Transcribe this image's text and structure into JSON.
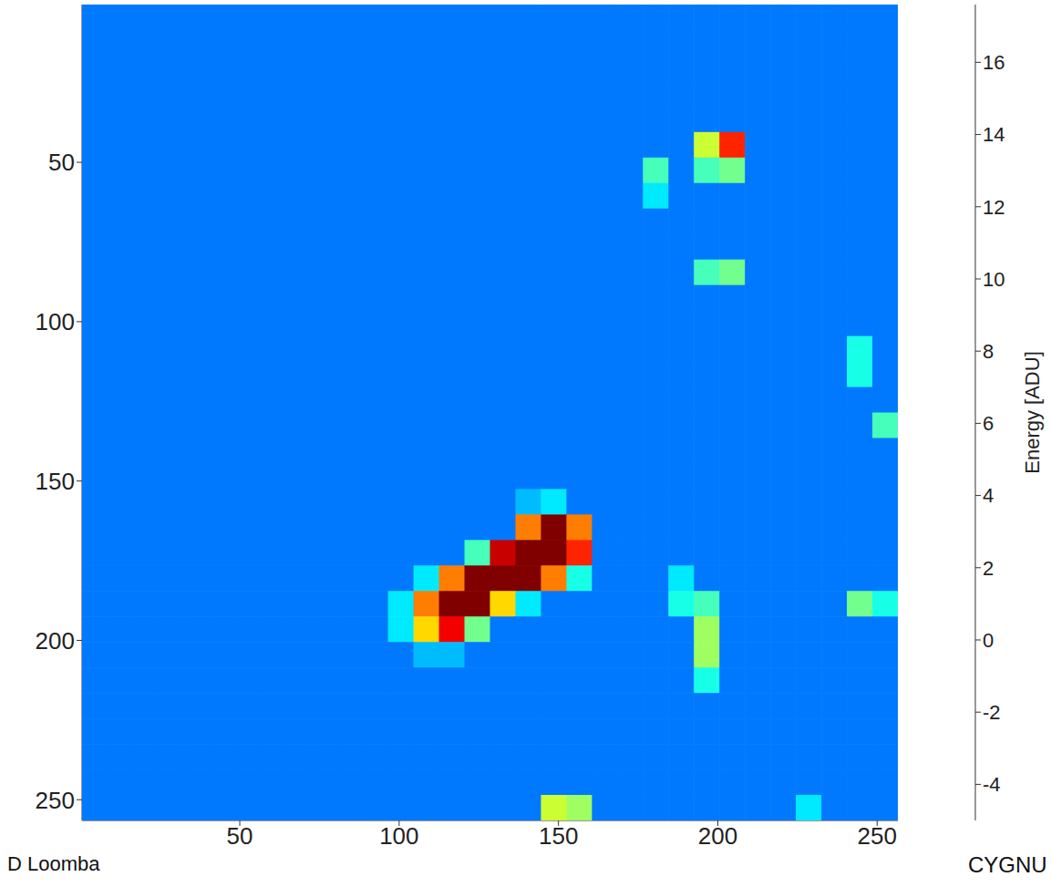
{
  "chart_data": {
    "type": "heatmap",
    "xlim": [
      0.5,
      256.5
    ],
    "ylim": [
      0.5,
      256.5
    ],
    "xticks": [
      50,
      100,
      150,
      200,
      250
    ],
    "yticks": [
      50,
      100,
      150,
      200,
      250
    ],
    "cells": [
      [
        0.5,
        0.5,
        0.5,
        0.5,
        0.5,
        0.5,
        0.5,
        0.5,
        0.5,
        0.5,
        0.5,
        0.5,
        0.5,
        0.5,
        0.5,
        0.5,
        0.5,
        0.5,
        0.5,
        0.5,
        0.5,
        0.5,
        0.5,
        0.5,
        0.5,
        0.5,
        0.5,
        0.5,
        0.5,
        0.5,
        0.5,
        0.5
      ],
      [
        0.5,
        0.5,
        0.5,
        0.5,
        0.5,
        0.5,
        0.5,
        0.5,
        0.5,
        0.5,
        0.5,
        0.5,
        0.5,
        0.5,
        0.5,
        0.5,
        0.5,
        0.5,
        0.5,
        0.5,
        0.5,
        0.5,
        0.5,
        0.5,
        0.5,
        0.5,
        0.5,
        0.5,
        0.5,
        0.5,
        0.5,
        0.5
      ],
      [
        0.5,
        0.5,
        0.5,
        0.5,
        0.5,
        0.5,
        0.5,
        0.5,
        0.5,
        0.5,
        0.5,
        0.5,
        0.5,
        0.5,
        0.5,
        0.5,
        0.5,
        0.5,
        0.5,
        0.5,
        0.5,
        0.5,
        0.5,
        0.5,
        0.5,
        0.5,
        0.5,
        0.5,
        0.5,
        0.5,
        0.5,
        0.5
      ],
      [
        0.5,
        0.5,
        0.5,
        0.5,
        0.5,
        0.5,
        0.5,
        0.5,
        0.5,
        0.5,
        0.5,
        0.5,
        0.5,
        0.5,
        0.5,
        0.5,
        0.5,
        0.5,
        0.5,
        0.5,
        0.5,
        0.5,
        0.5,
        0.5,
        0.5,
        0.5,
        0.5,
        0.5,
        0.5,
        0.5,
        0.5,
        0.5
      ],
      [
        0.5,
        0.5,
        0.5,
        0.5,
        0.5,
        0.5,
        0.5,
        0.5,
        0.5,
        0.5,
        0.5,
        0.5,
        0.5,
        0.5,
        0.5,
        0.5,
        0.5,
        0.5,
        0.5,
        0.5,
        0.5,
        0.5,
        0.5,
        0.5,
        0.5,
        0.5,
        0.5,
        0.5,
        0.5,
        0.5,
        0.5,
        0.5
      ],
      [
        0.5,
        0.5,
        0.5,
        0.5,
        0.5,
        0.5,
        0.5,
        0.5,
        0.5,
        0.5,
        0.5,
        0.5,
        0.5,
        0.5,
        0.5,
        0.5,
        0.5,
        0.5,
        0.5,
        0.5,
        0.5,
        0.5,
        0.5,
        0.5,
        8,
        14,
        0.5,
        0.5,
        0.5,
        0.5,
        0.5,
        0.5
      ],
      [
        0.5,
        0.5,
        0.5,
        0.5,
        0.5,
        0.5,
        0.5,
        0.5,
        0.5,
        0.5,
        0.5,
        0.5,
        0.5,
        0.5,
        0.5,
        0.5,
        0.5,
        0.5,
        0.5,
        0.5,
        0.5,
        0.5,
        5,
        0.5,
        5,
        6,
        0.5,
        0.5,
        0.5,
        0.5,
        0.5,
        0.5
      ],
      [
        0.5,
        0.5,
        0.5,
        0.5,
        0.5,
        0.5,
        0.5,
        0.5,
        0.5,
        0.5,
        0.5,
        0.5,
        0.5,
        0.5,
        0.5,
        0.5,
        0.5,
        0.5,
        0.5,
        0.5,
        0.5,
        0.5,
        3,
        0.5,
        0.5,
        0.5,
        0.5,
        0.5,
        0.5,
        0.5,
        0.5,
        0.5
      ],
      [
        0.5,
        0.5,
        0.5,
        0.5,
        0.5,
        0.5,
        0.5,
        0.5,
        0.5,
        0.5,
        0.5,
        0.5,
        0.5,
        0.5,
        0.5,
        0.5,
        0.5,
        0.5,
        0.5,
        0.5,
        0.5,
        0.5,
        0.5,
        0.5,
        0.5,
        0.5,
        0.5,
        0.5,
        0.5,
        0.5,
        0.5,
        0.5
      ],
      [
        0.5,
        0.5,
        0.5,
        0.5,
        0.5,
        0.5,
        0.5,
        0.5,
        0.5,
        0.5,
        0.5,
        0.5,
        0.5,
        0.5,
        0.5,
        0.5,
        0.5,
        0.5,
        0.5,
        0.5,
        0.5,
        0.5,
        0.5,
        0.5,
        0.5,
        0.5,
        0.5,
        0.5,
        0.5,
        0.5,
        0.5,
        0.5
      ],
      [
        0.5,
        0.5,
        0.5,
        0.5,
        0.5,
        0.5,
        0.5,
        0.5,
        0.5,
        0.5,
        0.5,
        0.5,
        0.5,
        0.5,
        0.5,
        0.5,
        0.5,
        0.5,
        0.5,
        0.5,
        0.5,
        0.5,
        0.5,
        0.5,
        5,
        6,
        0.5,
        0.5,
        0.5,
        0.5,
        0.5,
        0.5
      ],
      [
        0.5,
        0.5,
        0.5,
        0.5,
        0.5,
        0.5,
        0.5,
        0.5,
        0.5,
        0.5,
        0.5,
        0.5,
        0.5,
        0.5,
        0.5,
        0.5,
        0.5,
        0.5,
        0.5,
        0.5,
        0.5,
        0.5,
        0.5,
        0.5,
        0.5,
        0.5,
        0.5,
        0.5,
        0.5,
        0.5,
        0.5,
        0.5
      ],
      [
        0.5,
        0.5,
        0.5,
        0.5,
        0.5,
        0.5,
        0.5,
        0.5,
        0.5,
        0.5,
        0.5,
        0.5,
        0.5,
        0.5,
        0.5,
        0.5,
        0.5,
        0.5,
        0.5,
        0.5,
        0.5,
        0.5,
        0.5,
        0.5,
        0.5,
        0.5,
        0.5,
        0.5,
        0.5,
        0.5,
        0.5,
        0.5
      ],
      [
        0.5,
        0.5,
        0.5,
        0.5,
        0.5,
        0.5,
        0.5,
        0.5,
        0.5,
        0.5,
        0.5,
        0.5,
        0.5,
        0.5,
        0.5,
        0.5,
        0.5,
        0.5,
        0.5,
        0.5,
        0.5,
        0.5,
        0.5,
        0.5,
        0.5,
        0.5,
        0.5,
        0.5,
        0.5,
        0.5,
        4,
        0.5
      ],
      [
        0.5,
        0.5,
        0.5,
        0.5,
        0.5,
        0.5,
        0.5,
        0.5,
        0.5,
        0.5,
        0.5,
        0.5,
        0.5,
        0.5,
        0.5,
        0.5,
        0.5,
        0.5,
        0.5,
        0.5,
        0.5,
        0.5,
        0.5,
        0.5,
        0.5,
        0.5,
        0.5,
        0.5,
        0.5,
        0.5,
        4,
        0.5
      ],
      [
        0.5,
        0.5,
        0.5,
        0.5,
        0.5,
        0.5,
        0.5,
        0.5,
        0.5,
        0.5,
        0.5,
        0.5,
        0.5,
        0.5,
        0.5,
        0.5,
        0.5,
        0.5,
        0.5,
        0.5,
        0.5,
        0.5,
        0.5,
        0.5,
        0.5,
        0.5,
        0.5,
        0.5,
        0.5,
        0.5,
        0.5,
        0.5
      ],
      [
        0.5,
        0.5,
        0.5,
        0.5,
        0.5,
        0.5,
        0.5,
        0.5,
        0.5,
        0.5,
        0.5,
        0.5,
        0.5,
        0.5,
        0.5,
        0.5,
        0.5,
        0.5,
        0.5,
        0.5,
        0.5,
        0.5,
        0.5,
        0.5,
        0.5,
        0.5,
        0.5,
        0.5,
        0.5,
        0.5,
        0.5,
        5
      ],
      [
        0.5,
        0.5,
        0.5,
        0.5,
        0.5,
        0.5,
        0.5,
        0.5,
        0.5,
        0.5,
        0.5,
        0.5,
        0.5,
        0.5,
        0.5,
        0.5,
        0.5,
        0.5,
        0.5,
        0.5,
        0.5,
        0.5,
        0.5,
        0.5,
        0.5,
        0.5,
        0.5,
        0.5,
        0.5,
        0.5,
        0.5,
        0.5
      ],
      [
        0.5,
        0.5,
        0.5,
        0.5,
        0.5,
        0.5,
        0.5,
        0.5,
        0.5,
        0.5,
        0.5,
        0.5,
        0.5,
        0.5,
        0.5,
        0.5,
        0.5,
        0.5,
        0.5,
        0.5,
        0.5,
        0.5,
        0.5,
        0.5,
        0.5,
        0.5,
        0.5,
        0.5,
        0.5,
        0.5,
        0.5,
        0.5
      ],
      [
        0.5,
        0.5,
        0.5,
        0.5,
        0.5,
        0.5,
        0.5,
        0.5,
        0.5,
        0.5,
        0.5,
        0.5,
        0.5,
        0.5,
        0.5,
        0.5,
        0.5,
        2,
        3,
        0.5,
        0.5,
        0.5,
        0.5,
        0.5,
        0.5,
        0.5,
        0.5,
        0.5,
        0.5,
        0.5,
        0.5,
        0.5
      ],
      [
        0.5,
        0.5,
        0.5,
        0.5,
        0.5,
        0.5,
        0.5,
        0.5,
        0.5,
        0.5,
        0.5,
        0.5,
        0.5,
        0.5,
        0.5,
        0.5,
        0.5,
        12,
        20,
        12,
        0.5,
        0.5,
        0.5,
        0.5,
        0.5,
        0.5,
        0.5,
        0.5,
        0.5,
        0.5,
        0.5,
        0.5
      ],
      [
        0.5,
        0.5,
        0.5,
        0.5,
        0.5,
        0.5,
        0.5,
        0.5,
        0.5,
        0.5,
        0.5,
        0.5,
        0.5,
        0.5,
        0.5,
        5,
        16,
        20,
        20,
        14,
        0.5,
        0.5,
        0.5,
        0.5,
        0.5,
        0.5,
        0.5,
        0.5,
        0.5,
        0.5,
        0.5,
        0.5
      ],
      [
        0.5,
        0.5,
        0.5,
        0.5,
        0.5,
        0.5,
        0.5,
        0.5,
        0.5,
        0.5,
        0.5,
        0.5,
        0.5,
        3,
        12,
        20,
        20,
        18,
        12,
        4,
        0.5,
        0.5,
        0.5,
        3,
        0.5,
        0.5,
        0.5,
        0.5,
        0.5,
        0.5,
        0.5,
        0.5
      ],
      [
        0.5,
        0.5,
        0.5,
        0.5,
        0.5,
        0.5,
        0.5,
        0.5,
        0.5,
        0.5,
        0.5,
        0.5,
        3,
        12,
        20,
        20,
        10,
        3,
        0.5,
        0.5,
        0.5,
        0.5,
        0.5,
        4,
        5,
        0.5,
        0.5,
        0.5,
        0.5,
        0.5,
        6,
        4
      ],
      [
        0.5,
        0.5,
        0.5,
        0.5,
        0.5,
        0.5,
        0.5,
        0.5,
        0.5,
        0.5,
        0.5,
        0.5,
        3,
        10,
        15,
        6,
        0.5,
        0.5,
        0.5,
        0.5,
        0.5,
        0.5,
        0.5,
        0.5,
        7,
        0.5,
        0.5,
        0.5,
        0.5,
        0.5,
        0.5,
        0.5
      ],
      [
        0.5,
        0.5,
        0.5,
        0.5,
        0.5,
        0.5,
        0.5,
        0.5,
        0.5,
        0.5,
        0.5,
        0.5,
        0.5,
        2,
        2,
        0.5,
        0.5,
        0.5,
        0.5,
        0.5,
        0.5,
        0.5,
        0.5,
        0.5,
        7,
        0.5,
        0.5,
        0.5,
        0.5,
        0.5,
        0.5,
        0.5
      ],
      [
        0.5,
        0.5,
        0.5,
        0.5,
        0.5,
        0.5,
        0.5,
        0.5,
        0.5,
        0.5,
        0.5,
        0.5,
        0.5,
        0.5,
        0.5,
        0.5,
        0.5,
        0.5,
        0.5,
        0.5,
        0.5,
        0.5,
        0.5,
        0.5,
        4,
        0.5,
        0.5,
        0.5,
        0.5,
        0.5,
        0.5,
        0.5
      ],
      [
        0.5,
        0.5,
        0.5,
        0.5,
        0.5,
        0.5,
        0.5,
        0.5,
        0.5,
        0.5,
        0.5,
        0.5,
        0.5,
        0.5,
        0.5,
        0.5,
        0.5,
        0.5,
        0.5,
        0.5,
        0.5,
        0.5,
        0.5,
        0.5,
        0.5,
        0.5,
        0.5,
        0.5,
        0.5,
        0.5,
        0.5,
        0.5
      ],
      [
        0.5,
        0.5,
        0.5,
        0.5,
        0.5,
        0.5,
        0.5,
        0.5,
        0.5,
        0.5,
        0.5,
        0.5,
        0.5,
        0.5,
        0.5,
        0.5,
        0.5,
        0.5,
        0.5,
        0.5,
        0.5,
        0.5,
        0.5,
        0.5,
        0.5,
        0.5,
        0.5,
        0.5,
        0.5,
        0.5,
        0.5,
        0.5
      ],
      [
        0.5,
        0.5,
        0.5,
        0.5,
        0.5,
        0.5,
        0.5,
        0.5,
        0.5,
        0.5,
        0.5,
        0.5,
        0.5,
        0.5,
        0.5,
        0.5,
        0.5,
        0.5,
        0.5,
        0.5,
        0.5,
        0.5,
        0.5,
        0.5,
        0.5,
        0.5,
        0.5,
        0.5,
        0.5,
        0.5,
        0.5,
        0.5
      ],
      [
        0.5,
        0.5,
        0.5,
        0.5,
        0.5,
        0.5,
        0.5,
        0.5,
        0.5,
        0.5,
        0.5,
        0.5,
        0.5,
        0.5,
        0.5,
        0.5,
        0.5,
        0.5,
        0.5,
        0.5,
        0.5,
        0.5,
        0.5,
        0.5,
        0.5,
        0.5,
        0.5,
        0.5,
        0.5,
        0.5,
        0.5,
        0.5
      ],
      [
        0.5,
        0.5,
        0.5,
        0.5,
        0.5,
        0.5,
        0.5,
        0.5,
        0.5,
        0.5,
        0.5,
        0.5,
        0.5,
        0.5,
        0.5,
        0.5,
        0.5,
        0.5,
        8,
        7,
        0.5,
        0.5,
        0.5,
        0.5,
        0.5,
        0.5,
        0.5,
        0.5,
        3,
        0.5,
        0.5,
        0.5
      ]
    ],
    "colorbar": {
      "label": "Energy [ADU]",
      "lim": [
        -5,
        17.6
      ],
      "ticks": [
        -4,
        -2,
        0,
        2,
        4,
        6,
        8,
        10,
        12,
        14,
        16
      ]
    },
    "annotations": [
      "D Loomba",
      "CYGNU"
    ]
  }
}
